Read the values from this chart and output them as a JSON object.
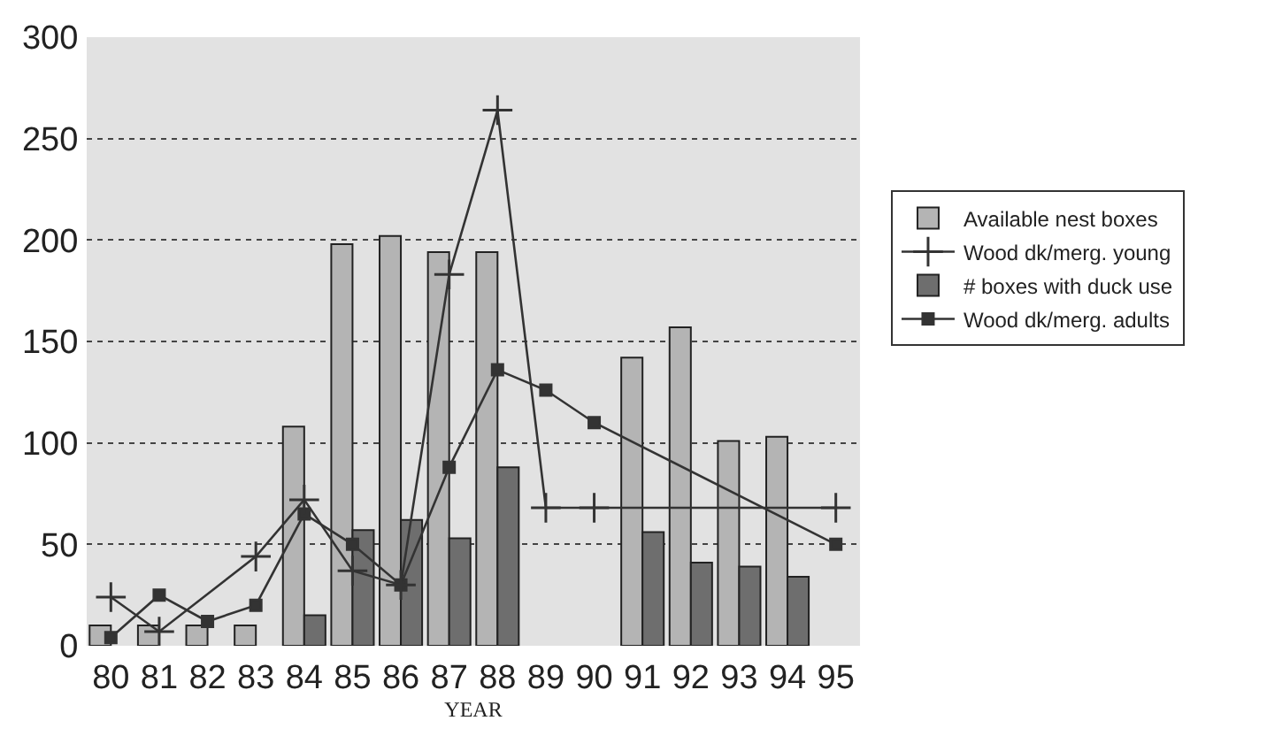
{
  "chart_data": {
    "type": "bar",
    "xlabel": "YEAR",
    "categories": [
      "80",
      "81",
      "82",
      "83",
      "84",
      "85",
      "86",
      "87",
      "88",
      "89",
      "90",
      "91",
      "92",
      "93",
      "94",
      "95"
    ],
    "series": [
      {
        "name": "Available nest boxes",
        "color": "#b4b4b4",
        "values": [
          10,
          10,
          10,
          10,
          108,
          198,
          202,
          194,
          194,
          null,
          null,
          142,
          157,
          101,
          103,
          null
        ]
      },
      {
        "name": "Wood dk/merg. young",
        "type": "line",
        "marker": "cross",
        "color": "#333333",
        "values": [
          24,
          7,
          null,
          44,
          72,
          37,
          30,
          183,
          264,
          68,
          68,
          null,
          null,
          null,
          null,
          68
        ]
      },
      {
        "name": "# boxes with duck use",
        "color": "#6e6e6e",
        "values": [
          null,
          null,
          null,
          null,
          15,
          57,
          62,
          53,
          88,
          null,
          null,
          56,
          41,
          39,
          34,
          null
        ]
      },
      {
        "name": "Wood dk/merg. adults",
        "type": "line",
        "marker": "square",
        "color": "#333333",
        "values": [
          4,
          25,
          12,
          20,
          65,
          50,
          30,
          88,
          136,
          126,
          110,
          null,
          null,
          null,
          null,
          50
        ]
      }
    ],
    "ylim": [
      0,
      300
    ],
    "yticks": [
      0,
      50,
      100,
      150,
      200,
      250,
      300
    ],
    "grid": "y",
    "legend": "right"
  }
}
